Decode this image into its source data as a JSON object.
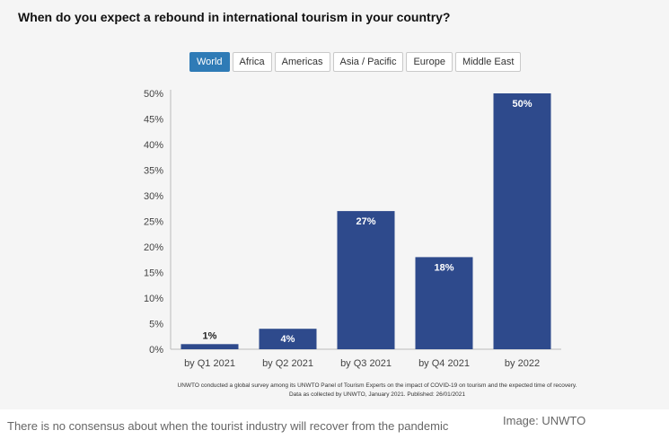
{
  "chart_title": "When do you expect a rebound in international tourism in your country?",
  "tabs": [
    {
      "label": "World",
      "active": true
    },
    {
      "label": "Africa",
      "active": false
    },
    {
      "label": "Americas",
      "active": false
    },
    {
      "label": "Asia / Pacific",
      "active": false
    },
    {
      "label": "Europe",
      "active": false
    },
    {
      "label": "Middle East",
      "active": false
    }
  ],
  "chart_data": {
    "type": "bar",
    "categories": [
      "by Q1 2021",
      "by Q2 2021",
      "by Q3 2021",
      "by Q4 2021",
      "by 2022"
    ],
    "values": [
      1,
      4,
      27,
      18,
      50
    ],
    "data_labels": [
      "1%",
      "4%",
      "27%",
      "18%",
      "50%"
    ],
    "ylim": [
      0,
      50
    ],
    "yticks": [
      "0%",
      "5%",
      "10%",
      "15%",
      "20%",
      "25%",
      "30%",
      "35%",
      "40%",
      "45%",
      "50%"
    ],
    "xlabel": "",
    "ylabel": "",
    "grid": false,
    "colors": {
      "bar": "#2e4a8c",
      "axis": "#bbbbbb"
    }
  },
  "notes": [
    "UNWTO conducted a global survey among its UNWTO Panel of Tourism Experts on the impact of COVID-19 on tourism and the expected time of recovery.",
    "Data as collected by UNWTO, January 2021. Published: 26/01/2021"
  ],
  "caption": "There is no consensus about when the tourist industry will recover from the pandemic",
  "credit": "Image: UNWTO",
  "colors": {
    "active_tab": "#2f7bb6",
    "panel_bg": "#f5f5f5"
  }
}
